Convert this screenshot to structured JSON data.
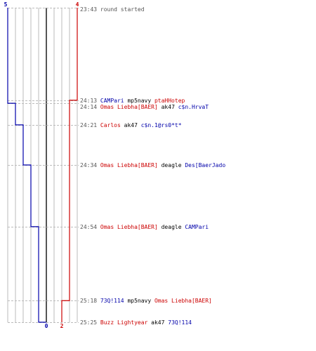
{
  "colors": {
    "team_a": "#0000aa",
    "team_b": "#cc0000",
    "text": "#000000",
    "time": "#555555",
    "grid": "#bbbbbb",
    "center_line": "#555555",
    "background": "#ffffff"
  },
  "teams": {
    "team_a": {
      "start_count": "5",
      "end_count": "0"
    },
    "team_b": {
      "start_count": "4",
      "end_count": "2"
    }
  },
  "round_start": {
    "time": "23:43",
    "text": "round started"
  },
  "events": [
    {
      "time": "24:13",
      "killer": "CAMPari",
      "killer_team": "team_a",
      "weapon": "mp5navy",
      "victim": "ptaHHotep",
      "victim_team": "team_b",
      "team_a_alive": 5,
      "team_b_alive": 3
    },
    {
      "time": "24:14",
      "killer": "Omas Liebha[BAER]",
      "killer_team": "team_b",
      "weapon": "ak47",
      "victim": "c$n.HrvaT",
      "victim_team": "team_a",
      "team_a_alive": 4,
      "team_b_alive": 3
    },
    {
      "time": "24:21",
      "killer": "Carlos",
      "killer_team": "team_b",
      "weapon": "ak47",
      "victim": "c$n.1@rs0*t*",
      "victim_team": "team_a",
      "team_a_alive": 3,
      "team_b_alive": 3
    },
    {
      "time": "24:34",
      "killer": "Omas Liebha[BAER]",
      "killer_team": "team_b",
      "weapon": "deagle",
      "victim": "Des[BaerJado",
      "victim_team": "team_a",
      "team_a_alive": 2,
      "team_b_alive": 3
    },
    {
      "time": "24:54",
      "killer": "Omas Liebha[BAER]",
      "killer_team": "team_b",
      "weapon": "deagle",
      "victim": "CAMPari",
      "victim_team": "team_a",
      "team_a_alive": 1,
      "team_b_alive": 3
    },
    {
      "time": "25:18",
      "killer": "73Q!114",
      "killer_team": "team_a",
      "weapon": "mp5navy",
      "victim": "Omas Liebha[BAER]",
      "victim_team": "team_b",
      "team_a_alive": 1,
      "team_b_alive": 2
    },
    {
      "time": "25:25",
      "killer": "Buzz Lightyear",
      "killer_team": "team_b",
      "weapon": "ak47",
      "victim": "73Q!114",
      "victim_team": "team_a",
      "team_a_alive": 0,
      "team_b_alive": 2
    }
  ]
}
